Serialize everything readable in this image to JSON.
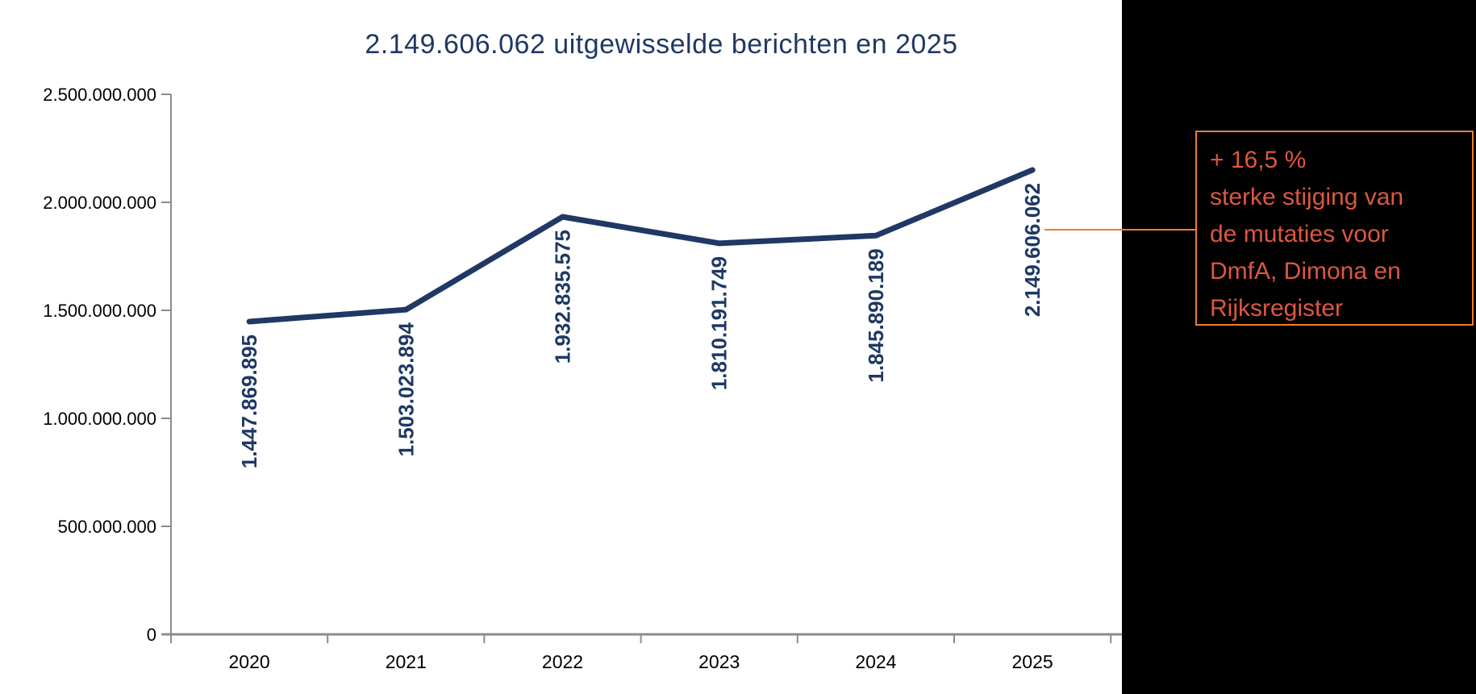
{
  "chart_data": {
    "type": "line",
    "title": "2.149.606.062 uitgewisselde berichten en 2025",
    "categories": [
      "2020",
      "2021",
      "2022",
      "2023",
      "2024",
      "2025"
    ],
    "values": [
      1447869895,
      1503023894,
      1932835575,
      1810191749,
      1845890189,
      2149606062
    ],
    "data_labels": [
      "1.447.869.895",
      "1.503.023.894",
      "1.932.835.575",
      "1.810.191.749",
      "1.845.890.189",
      "2.149.606.062"
    ],
    "xlabel": "",
    "ylabel": "",
    "ylim": [
      0,
      2500000000
    ],
    "ytick_step": 500000000,
    "ytick_labels": [
      "0",
      "500.000.000",
      "1.000.000.000",
      "1.500.000.000",
      "2.000.000.000",
      "2.500.000.000"
    ],
    "grid": false,
    "legend": "none",
    "line_color": "#1F3864",
    "data_label_color": "#1F3864",
    "title_color": "#1F3864",
    "axis_color": "#8C8C8C",
    "tick_label_color": "#000000"
  },
  "annotation": {
    "lines": [
      "+ 16,5 %",
      "sterke stijging van",
      "de mutaties voor",
      "DmfA, Dimona en",
      "Rijksregister"
    ],
    "text_color": "#DC5741",
    "border_color": "#ED7D31",
    "connector_color": "#ED7D31"
  },
  "side_band_color": "#000000"
}
